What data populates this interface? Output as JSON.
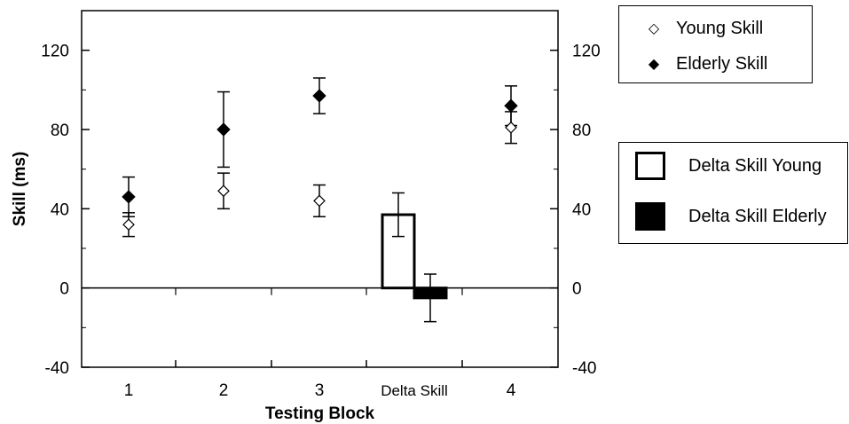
{
  "chart_data": {
    "type": "scatter",
    "xlabel": "Testing Block",
    "ylabel": "Skill (ms)",
    "categories": [
      "1",
      "2",
      "3",
      "Delta Skill",
      "4"
    ],
    "ylim": [
      -40,
      140
    ],
    "yticks": [
      -40,
      0,
      40,
      80,
      120
    ],
    "right_axis_mirrored": true,
    "series": [
      {
        "name": "Young Skill",
        "marker": "open-diamond",
        "categories": [
          "1",
          "2",
          "3",
          "4"
        ],
        "values": [
          32,
          49,
          44,
          81
        ],
        "error": [
          6,
          9,
          8,
          8
        ]
      },
      {
        "name": "Elderly Skill",
        "marker": "filled-diamond",
        "categories": [
          "1",
          "2",
          "3",
          "4"
        ],
        "values": [
          46,
          80,
          97,
          92
        ],
        "error": [
          10,
          19,
          9,
          10
        ]
      }
    ],
    "bars": [
      {
        "name": "Delta Skill Young",
        "style": "open",
        "category": "Delta Skill",
        "value": 37,
        "error": 11
      },
      {
        "name": "Delta Skill Elderly",
        "style": "filled",
        "category": "Delta Skill",
        "value": -5,
        "error": 12
      }
    ],
    "legend_placement": "right",
    "colors": {
      "marker": "#000000",
      "axis": "#000000",
      "background": "#ffffff"
    }
  }
}
